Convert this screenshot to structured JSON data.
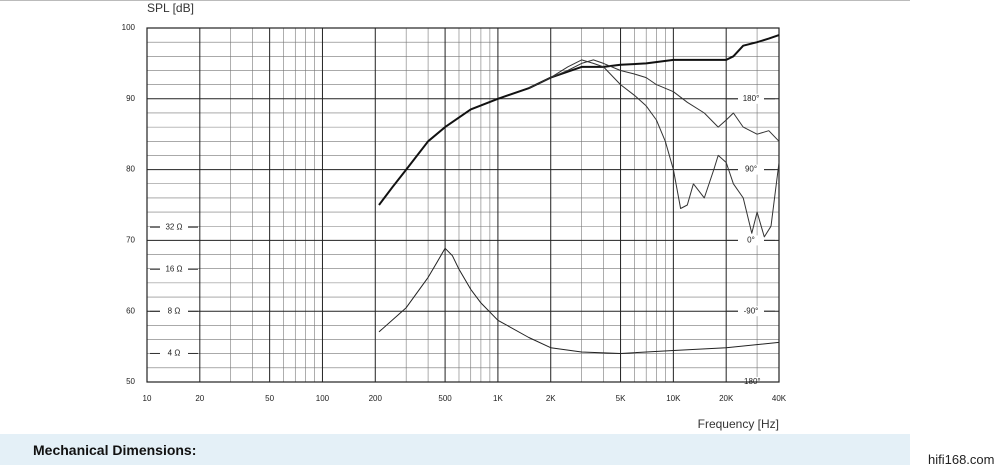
{
  "chart_data": {
    "type": "line",
    "y_label": "SPL [dB]",
    "x_label": "Frequency [Hz]",
    "xscale": "log",
    "xlim": [
      10,
      40000
    ],
    "xticks": [
      10,
      20,
      50,
      100,
      200,
      500,
      {
        "value": 1000,
        "label": "1K"
      },
      {
        "value": 2000,
        "label": "2K"
      },
      {
        "value": 5000,
        "label": "5K"
      },
      {
        "value": 10000,
        "label": "10K"
      },
      {
        "value": 20000,
        "label": "20K"
      },
      {
        "value": 40000,
        "label": "40K"
      }
    ],
    "xminorticks": [
      30,
      40,
      60,
      70,
      80,
      90,
      300,
      400,
      600,
      700,
      800,
      900,
      3000,
      4000,
      6000,
      7000,
      8000,
      9000,
      30000
    ],
    "ylim": [
      50,
      100
    ],
    "yticks": [
      50,
      60,
      70,
      80,
      90,
      100
    ],
    "yminorticks": [
      52,
      54,
      56,
      58,
      62,
      64,
      66,
      68,
      72,
      74,
      76,
      78,
      82,
      84,
      86,
      88,
      92,
      94,
      96,
      98
    ],
    "y2scale": "log",
    "y2lim": [
      2.5,
      850
    ],
    "y2ticks": [
      {
        "value": 4,
        "label": "4 Ω"
      },
      {
        "value": 8,
        "label": "8 Ω"
      },
      {
        "value": 16,
        "label": "16 Ω"
      },
      {
        "value": 32,
        "label": "32 Ω"
      }
    ],
    "y3lim": [
      -180,
      270
    ],
    "y3ticks": [
      {
        "value": -180,
        "label": "-180°"
      },
      {
        "value": -90,
        "label": "-90°"
      },
      {
        "value": 0,
        "label": "0°"
      },
      {
        "value": 90,
        "label": "90°"
      },
      {
        "value": 180,
        "label": "180°"
      }
    ],
    "grid": true,
    "series": [
      {
        "color": "#111111",
        "line_width": 2,
        "x": [
          210,
          250,
          300,
          400,
          500,
          700,
          1000,
          1500,
          2000,
          3000,
          4000,
          5000,
          7000,
          10000,
          15000,
          20000,
          22000,
          25000,
          30000,
          35000,
          40000
        ],
        "values": [
          75,
          77.5,
          80,
          84,
          86,
          88.5,
          90,
          91.5,
          93,
          94.5,
          94.5,
          94.8,
          95,
          95.5,
          95.5,
          95.5,
          96,
          97.5,
          98,
          98.5,
          99
        ]
      },
      {
        "color": "#333333",
        "line_width": 1,
        "x": [
          1500,
          2000,
          2500,
          3000,
          3500,
          4000,
          5000,
          6000,
          7000,
          8000,
          10000,
          12000,
          15000,
          18000,
          20000,
          22000,
          25000,
          30000,
          35000,
          40000
        ],
        "values": [
          91.5,
          93,
          94,
          95,
          95.5,
          95,
          94,
          93.5,
          93,
          92,
          91,
          89.5,
          88,
          86,
          87,
          88,
          86,
          85,
          85.5,
          84
        ]
      },
      {
        "color": "#333333",
        "line_width": 1,
        "x": [
          2000,
          2500,
          3000,
          3500,
          4000,
          5000,
          6000,
          7000,
          8000,
          9000,
          10000,
          11000,
          12000,
          13000,
          15000,
          17000,
          18000,
          20000,
          22000,
          25000,
          28000,
          30000,
          33000,
          36000,
          40000
        ],
        "values": [
          93,
          94.5,
          95.5,
          95,
          94.5,
          92,
          90.5,
          89,
          87,
          84,
          80,
          74.5,
          75,
          78,
          76,
          80,
          82,
          81,
          78,
          76,
          71,
          74,
          70.5,
          72,
          81
        ]
      },
      {
        "color": "#222222",
        "line_width": 1,
        "axis": "y2",
        "x": [
          210,
          300,
          400,
          450,
          500,
          550,
          600,
          700,
          800,
          1000,
          1500,
          2000,
          3000,
          5000,
          10000,
          20000,
          40000
        ],
        "values": [
          5.7,
          8.5,
          14,
          18,
          22.6,
          20,
          16,
          11.5,
          9.2,
          6.9,
          5.2,
          4.4,
          4.1,
          4.0,
          4.2,
          4.4,
          4.8
        ]
      }
    ]
  },
  "section_heading": "Mechanical Dimensions:",
  "watermark": "hifi168.com"
}
